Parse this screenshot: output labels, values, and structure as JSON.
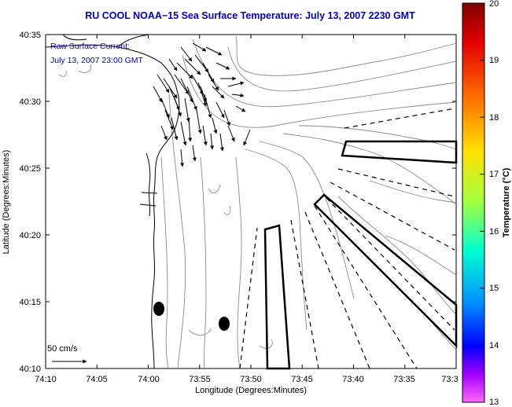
{
  "title": "RU COOL  NOAA−15  Sea Surface Temperature:  July 13, 2007 2230 GMT",
  "current_label_1": "Raw Surface Current:",
  "current_label_2": "July 13, 2007 23:00 GMT",
  "scale_label": "50 cm/s",
  "xlabel": "Longitude (Degrees:Minutes)",
  "ylabel": "Latitude (Degrees:Minutes)",
  "x_ticks": [
    "74:10",
    "74:05",
    "74:00",
    "73:55",
    "73:50",
    "73:45",
    "73:40",
    "73:35",
    "73:3"
  ],
  "y_ticks": [
    "40:35",
    "40:30",
    "40:25",
    "40:20",
    "40:15",
    "40:10"
  ],
  "colorbar": {
    "label": "Temperature (°C)",
    "ticks": [
      "20",
      "19",
      "18",
      "17",
      "16",
      "15",
      "14",
      "13"
    ],
    "min": 13,
    "max": 20
  },
  "colors": {
    "title": "#0000cc",
    "land_line": "#000000",
    "bathymetry": "#8a8a8a"
  }
}
